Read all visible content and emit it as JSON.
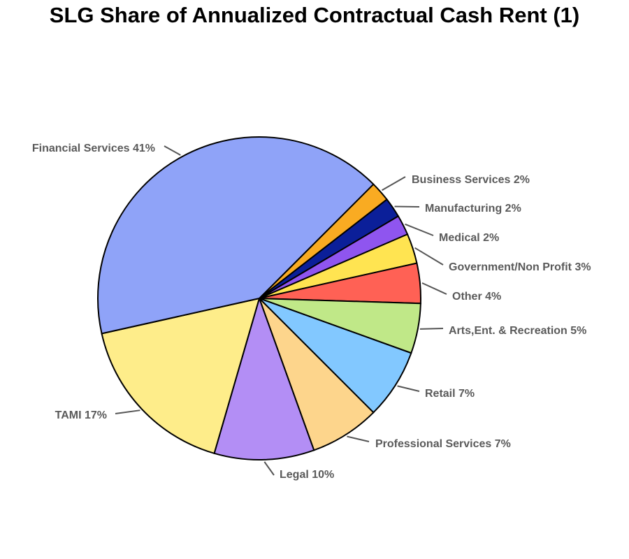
{
  "chart_data": {
    "type": "pie",
    "title": "SLG Share of Annualized Contractual Cash Rent (1)",
    "slices": [
      {
        "label": "Business Services 2%",
        "value": 2,
        "color": "#f9ab22"
      },
      {
        "label": "Manufacturing 2%",
        "value": 2,
        "color": "#0b1f99"
      },
      {
        "label": "Medical 2%",
        "value": 2,
        "color": "#8f55ef"
      },
      {
        "label": "Government/Non Profit 3%",
        "value": 3,
        "color": "#ffe451"
      },
      {
        "label": "Other 4%",
        "value": 4,
        "color": "#ff6155"
      },
      {
        "label": "Arts,Ent. & Recreation 5%",
        "value": 5,
        "color": "#c0e888"
      },
      {
        "label": "Retail 7%",
        "value": 7,
        "color": "#82c8ff"
      },
      {
        "label": "Professional Services 7%",
        "value": 7,
        "color": "#fdd58c"
      },
      {
        "label": "Legal 10%",
        "value": 10,
        "color": "#b38ef5"
      },
      {
        "label": "TAMI 17%",
        "value": 17,
        "color": "#feed8a"
      },
      {
        "label": "Financial Services 41%",
        "value": 41,
        "color": "#8fa3f8"
      }
    ]
  }
}
